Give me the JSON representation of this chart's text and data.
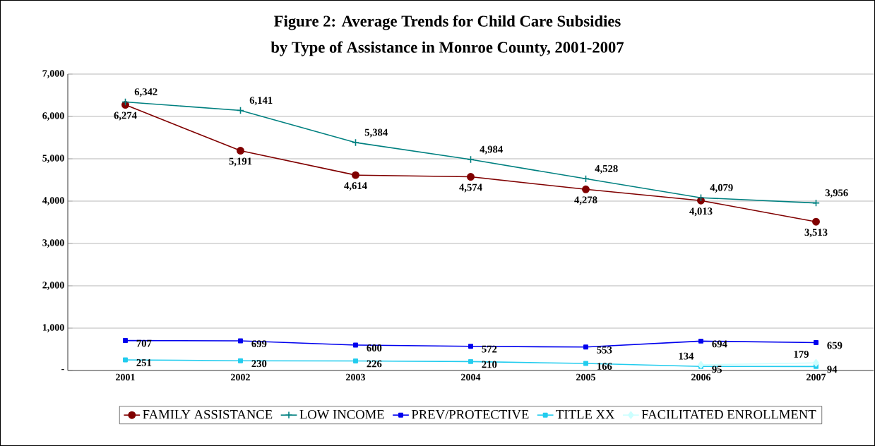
{
  "chart_data": {
    "type": "line",
    "title": "Figure 2: Average Trends for Child Care Subsidies",
    "subtitle": "by Type of Assistance in Monroe County, 2001-2007",
    "categories": [
      "2001",
      "2002",
      "2003",
      "2004",
      "2005",
      "2006",
      "2007"
    ],
    "series": [
      {
        "name": "FAMILY ASSISTANCE",
        "color": "#800000",
        "marker": "circle",
        "values": [
          6274,
          5191,
          4614,
          4574,
          4278,
          4013,
          3513
        ],
        "value_labels": [
          "6,274",
          "5,191",
          "4,614",
          "4,574",
          "4,278",
          "4,013",
          "3,513"
        ]
      },
      {
        "name": "LOW INCOME",
        "color": "#008080",
        "marker": "cross",
        "values": [
          6342,
          6141,
          5384,
          4984,
          4528,
          4079,
          3956
        ],
        "value_labels": [
          "6,342",
          "6,141",
          "5,384",
          "4,984",
          "4,528",
          "4,079",
          "3,956"
        ]
      },
      {
        "name": "PREV/PROTECTIVE",
        "color": "#0000ee",
        "marker": "square",
        "values": [
          707,
          699,
          600,
          572,
          553,
          694,
          659
        ],
        "value_labels": [
          "707",
          "699",
          "600",
          "572",
          "553",
          "694",
          "659"
        ]
      },
      {
        "name": "TITLE XX",
        "color": "#22ccee",
        "marker": "square",
        "values": [
          251,
          230,
          226,
          210,
          166,
          95,
          94
        ],
        "value_labels": [
          "251",
          "230",
          "226",
          "210",
          "166",
          "95",
          "94"
        ]
      },
      {
        "name": "FACILITATED ENROLLMENT",
        "color": "#ccffff",
        "marker": "diamond",
        "values": [
          null,
          null,
          null,
          null,
          null,
          134,
          179
        ],
        "value_labels": [
          null,
          null,
          null,
          null,
          null,
          "134",
          "179"
        ]
      }
    ],
    "ylim": [
      0,
      7000
    ],
    "yticks": [
      {
        "value": 0,
        "label": "-"
      },
      {
        "value": 1000,
        "label": "1,000"
      },
      {
        "value": 2000,
        "label": "2,000"
      },
      {
        "value": 3000,
        "label": "3,000"
      },
      {
        "value": 4000,
        "label": "4,000"
      },
      {
        "value": 5000,
        "label": "5,000"
      },
      {
        "value": 6000,
        "label": "6,000"
      },
      {
        "value": 7000,
        "label": "7,000"
      }
    ],
    "grid": "y",
    "legend": "bottom"
  }
}
